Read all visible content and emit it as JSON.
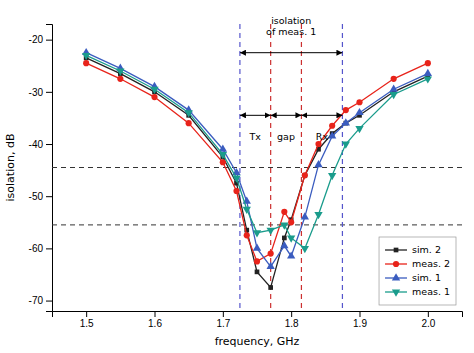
{
  "chart_data": {
    "type": "line",
    "x_label": "frequency, GHz",
    "y_label": "isolation, dB",
    "xlim": [
      1.45,
      2.05
    ],
    "ylim": [
      -72,
      -17
    ],
    "xticks": [
      1.5,
      1.6,
      1.7,
      1.8,
      1.9,
      {
        "value": 2.0,
        "label": "2.0"
      }
    ],
    "yticks": [
      -70,
      -60,
      -50,
      -40,
      -30,
      -20
    ],
    "grid": false,
    "legend": "lower right",
    "series": [
      {
        "name": "sim. 2",
        "color": "#222222",
        "marker": "square",
        "x": [
          1.5,
          1.55,
          1.6,
          1.65,
          1.7,
          1.72,
          1.735,
          1.75,
          1.77,
          1.79,
          1.8,
          1.82,
          1.84,
          1.86,
          1.88,
          1.9,
          1.95,
          2.0
        ],
        "values": [
          -23.5,
          -26.5,
          -30.0,
          -34.5,
          -42.5,
          -47.5,
          -56.5,
          -64.5,
          -67.5,
          -58.0,
          -54.5,
          -46.0,
          -41.0,
          -38.0,
          -36.0,
          -34.5,
          -30.0,
          -27.0
        ]
      },
      {
        "name": "meas. 2",
        "color": "#e8231a",
        "marker": "circle",
        "x": [
          1.5,
          1.55,
          1.6,
          1.65,
          1.7,
          1.72,
          1.735,
          1.75,
          1.77,
          1.79,
          1.8,
          1.82,
          1.84,
          1.86,
          1.88,
          1.9,
          1.95,
          2.0
        ],
        "values": [
          -24.5,
          -27.5,
          -31.0,
          -36.0,
          -43.5,
          -49.0,
          -57.5,
          -62.5,
          -61.0,
          -53.0,
          -55.0,
          -46.0,
          -40.0,
          -36.5,
          -33.5,
          -32.0,
          -27.5,
          -24.5
        ]
      },
      {
        "name": "sim. 1",
        "color": "#3a5cbf",
        "marker": "triangle-up",
        "x": [
          1.5,
          1.55,
          1.6,
          1.65,
          1.7,
          1.72,
          1.735,
          1.75,
          1.77,
          1.79,
          1.8,
          1.82,
          1.84,
          1.86,
          1.88,
          1.9,
          1.95,
          2.0
        ],
        "values": [
          -22.5,
          -25.5,
          -29.0,
          -33.5,
          -41.0,
          -45.5,
          -51.0,
          -60.0,
          -63.5,
          -59.5,
          -61.5,
          -54.0,
          -44.0,
          -38.5,
          -36.0,
          -34.0,
          -29.5,
          -26.5
        ]
      },
      {
        "name": "meas. 1",
        "color": "#1a9c8c",
        "marker": "triangle-down",
        "x": [
          1.5,
          1.55,
          1.6,
          1.65,
          1.7,
          1.72,
          1.735,
          1.75,
          1.77,
          1.79,
          1.8,
          1.82,
          1.84,
          1.86,
          1.88,
          1.9,
          1.95,
          2.0
        ],
        "values": [
          -23.0,
          -26.0,
          -29.5,
          -34.0,
          -42.0,
          -46.5,
          -52.5,
          -57.0,
          -56.5,
          -55.5,
          -58.0,
          -60.0,
          -53.5,
          -46.0,
          -40.0,
          -37.0,
          -30.5,
          -27.5
        ]
      }
    ],
    "hlines": [
      {
        "value": -44.5,
        "color": "#333333",
        "line_style": "dashed"
      },
      {
        "value": -55.5,
        "color": "#333333",
        "line_style": "dashed"
      }
    ],
    "vlines": [
      {
        "value": 1.725,
        "color": "#5555cc",
        "line_style": "dashed"
      },
      {
        "value": 1.875,
        "color": "#5555cc",
        "line_style": "dashed"
      },
      {
        "value": 1.77,
        "color": "#cc3030",
        "line_style": "dashed"
      },
      {
        "value": 1.815,
        "color": "#cc3030",
        "line_style": "dashed"
      }
    ],
    "annotations": [
      {
        "text": [
          "isolation",
          "of meas. 1"
        ],
        "x": 1.8,
        "y": -19.5,
        "arrow": {
          "x1": 1.725,
          "x2": 1.875,
          "y": -22.5
        }
      },
      {
        "text": [
          "Tx"
        ],
        "x": 1.7475,
        "y": -37.5,
        "arrow": {
          "x1": 1.725,
          "x2": 1.77,
          "y": -34.5
        }
      },
      {
        "text": [
          "gap"
        ],
        "x": 1.7925,
        "y": -37.5,
        "arrow": {
          "x1": 1.77,
          "x2": 1.815,
          "y": -34.5
        }
      },
      {
        "text": [
          "Rx"
        ],
        "x": 1.845,
        "y": -37.5,
        "arrow": {
          "x1": 1.815,
          "x2": 1.875,
          "y": -34.5
        }
      }
    ]
  }
}
